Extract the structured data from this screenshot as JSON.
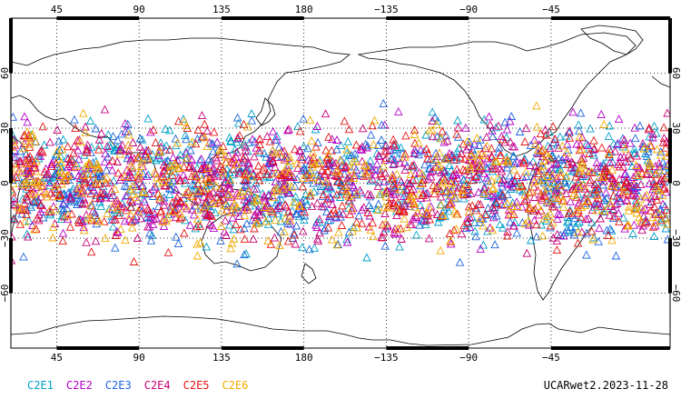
{
  "product_label": "UCARwet2.2023-11-28",
  "map": {
    "projection": "equirectangular",
    "center_longitude": 180,
    "lon_range": [
      20,
      380
    ],
    "lat_range": [
      -90,
      90
    ],
    "grid_style": "dotted",
    "top_lon_labels": [
      "45",
      "90",
      "135",
      "180",
      "−135",
      "−90",
      "−45"
    ],
    "bottom_lon_labels": [
      "45",
      "90",
      "135",
      "180",
      "−135",
      "−90",
      "−45"
    ],
    "left_lat_labels": [
      "60",
      "30",
      "0",
      "−30",
      "−60"
    ],
    "right_lat_labels": [
      "60",
      "30",
      "0",
      "−30",
      "−60"
    ],
    "lon_ticks": [
      45,
      90,
      135,
      180,
      225,
      270,
      315
    ],
    "lat_ticks": [
      60,
      30,
      0,
      -30,
      -60
    ],
    "observation_band": {
      "lat_min": -45,
      "lat_max": 45,
      "marker": "open-triangle"
    }
  },
  "legend": [
    {
      "label": "C2E1",
      "color": "#00a0c8"
    },
    {
      "label": "C2E2",
      "color": "#b400c8"
    },
    {
      "label": "C2E3",
      "color": "#1e64dc"
    },
    {
      "label": "C2E4",
      "color": "#c80078"
    },
    {
      "label": "C2E5",
      "color": "#e61414"
    },
    {
      "label": "C2E6",
      "color": "#f0aa00"
    }
  ]
}
